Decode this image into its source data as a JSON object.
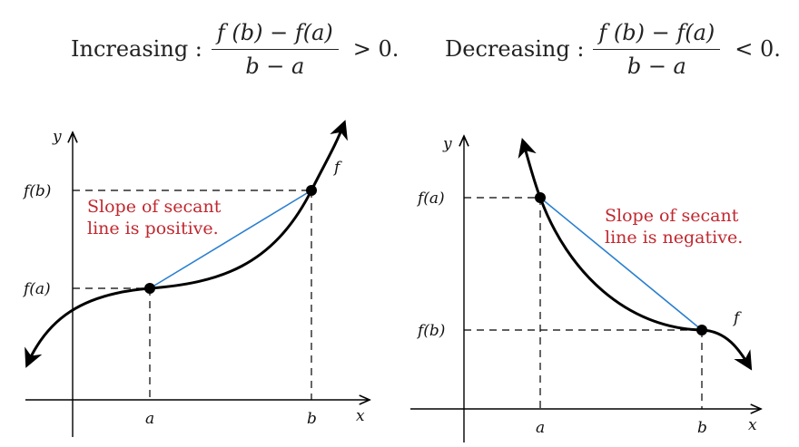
{
  "formulas": {
    "increasing": {
      "label": "Increasing :",
      "numerator": "f (b) − f(a)",
      "denominator": "b − a",
      "comparison": "> 0."
    },
    "decreasing": {
      "label": "Decreasing :",
      "numerator": "f (b) − f(a)",
      "denominator": "b − a",
      "comparison": "< 0."
    }
  },
  "left_graph": {
    "y_axis_label": "y",
    "x_axis_label": "x",
    "a_label": "a",
    "b_label": "b",
    "fa_label": "f(a)",
    "fb_label": "f(b)",
    "function_label": "f",
    "note_line1": "Slope of secant",
    "note_line2": "line is positive."
  },
  "right_graph": {
    "y_axis_label": "y",
    "x_axis_label": "x",
    "a_label": "a",
    "b_label": "b",
    "fa_label": "f(a)",
    "fb_label": "f(b)",
    "function_label": "f",
    "note_line1": "Slope of secant",
    "note_line2": "line is negative."
  },
  "colors": {
    "curve": "#000000",
    "secant": "#2a7fd0",
    "note": "#c0282f",
    "dashed": "#000000"
  }
}
